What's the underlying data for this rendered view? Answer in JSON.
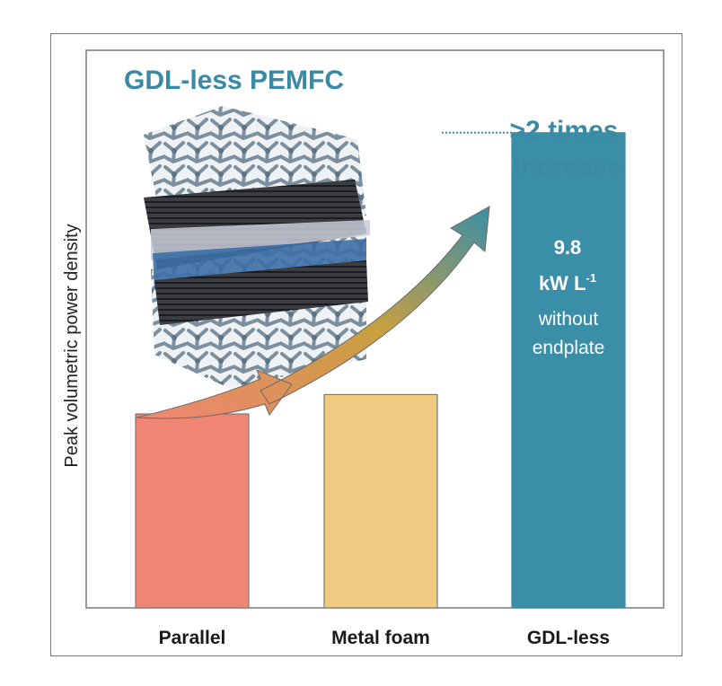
{
  "colors": {
    "title": "#3a8aa6",
    "parallel": "#f08573",
    "metal_foam": "#f0cb82",
    "gdl_less": "#3b8ea8",
    "bar_stroke": "#7a7a7a",
    "arrow_start": "#f08573",
    "arrow_end": "#3b8ea8"
  },
  "chart_data": {
    "type": "bar",
    "title": "GDL-less PEMFC",
    "xlabel": "",
    "ylabel": "Peak volumetric power density",
    "categories": [
      "Parallel",
      "Metal foam",
      "GDL-less"
    ],
    "values": [
      4.0,
      4.4,
      9.8
    ],
    "ylim": [
      0,
      11.5
    ],
    "grid": false,
    "legend": "none",
    "annotations": {
      "increase_line1": ">2 times",
      "increase_line2": "increase",
      "value_line1": "9.8",
      "value_line2": "kW L",
      "value_exponent": "-1",
      "note_line1": "without",
      "note_line2": "endplate"
    },
    "illustration": "porous-foam-membrane-stack-icon"
  }
}
